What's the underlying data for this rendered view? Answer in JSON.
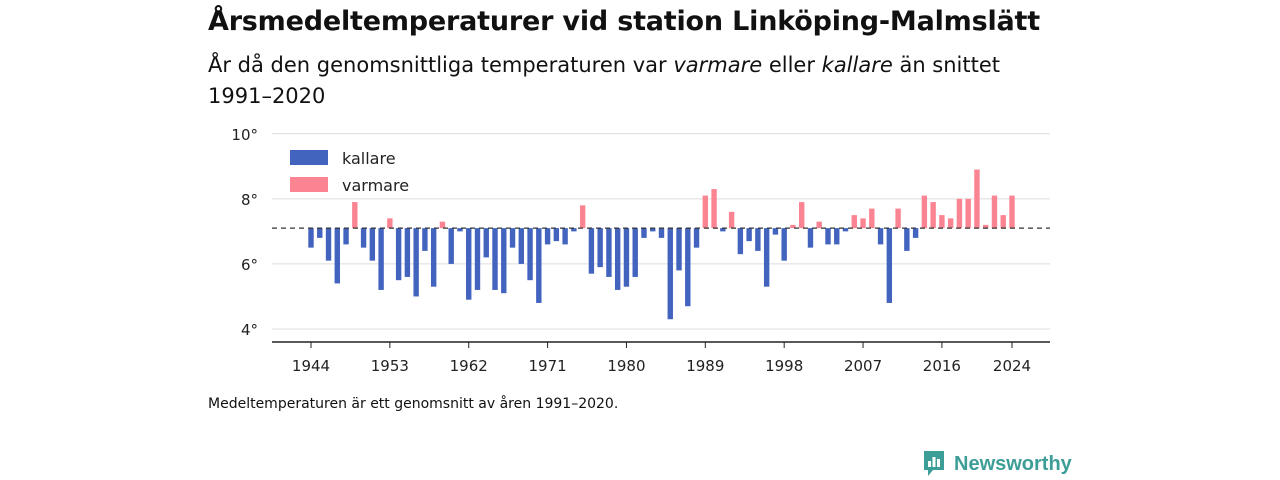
{
  "title": "Årsmedeltemperaturer vid station Linköping-Malmslätt",
  "subtitle": {
    "part1": "År då den genomsnittliga temperaturen var ",
    "em1": "varmare",
    "part2": " eller ",
    "em2": "kallare",
    "part3": " än snittet 1991–2020"
  },
  "footnote": "Medeltemperaturen är ett genomsnitt av åren 1991–2020.",
  "brand": {
    "name": "Newsworthy",
    "icon": "newsworthy-logo-icon",
    "color": "#3d9e97"
  },
  "chart_data": {
    "type": "bar",
    "baseline": 7.1,
    "ylim": [
      3.6,
      10.3
    ],
    "yticks": [
      4,
      6,
      8,
      10
    ],
    "ytick_suffix": "°",
    "xticks": [
      1944,
      1953,
      1962,
      1971,
      1980,
      1989,
      1998,
      2007,
      2016,
      2024
    ],
    "grid": true,
    "legend_position": "top-left",
    "series": [
      {
        "name": "kallare",
        "color": "#4264bf"
      },
      {
        "name": "varmare",
        "color": "#fb8492"
      }
    ],
    "x": [
      1944,
      1945,
      1946,
      1947,
      1948,
      1949,
      1950,
      1951,
      1952,
      1953,
      1954,
      1955,
      1956,
      1957,
      1958,
      1959,
      1960,
      1961,
      1962,
      1963,
      1964,
      1965,
      1966,
      1967,
      1968,
      1969,
      1970,
      1971,
      1972,
      1973,
      1974,
      1975,
      1976,
      1977,
      1978,
      1979,
      1980,
      1981,
      1982,
      1983,
      1984,
      1985,
      1986,
      1987,
      1988,
      1989,
      1990,
      1991,
      1992,
      1993,
      1994,
      1995,
      1996,
      1997,
      1998,
      1999,
      2000,
      2001,
      2002,
      2003,
      2004,
      2005,
      2006,
      2007,
      2008,
      2009,
      2010,
      2011,
      2012,
      2013,
      2014,
      2015,
      2016,
      2017,
      2018,
      2019,
      2020,
      2021,
      2022,
      2023,
      2024
    ],
    "values": [
      6.5,
      6.8,
      6.1,
      5.4,
      6.6,
      7.9,
      6.5,
      6.1,
      5.2,
      7.4,
      5.5,
      5.6,
      5.0,
      6.4,
      5.3,
      7.3,
      6.0,
      7.0,
      4.9,
      5.2,
      6.2,
      5.2,
      5.1,
      6.5,
      6.0,
      5.5,
      4.8,
      6.6,
      6.7,
      6.6,
      7.0,
      7.8,
      5.7,
      5.9,
      5.6,
      5.2,
      5.3,
      5.6,
      6.8,
      7.0,
      6.8,
      4.3,
      5.8,
      4.7,
      6.5,
      8.1,
      8.3,
      7.0,
      7.6,
      6.3,
      6.7,
      6.4,
      5.3,
      6.9,
      6.1,
      7.2,
      7.9,
      6.5,
      7.3,
      6.6,
      6.6,
      7.0,
      7.5,
      7.4,
      7.7,
      6.6,
      4.8,
      7.7,
      6.4,
      6.8,
      8.1,
      7.9,
      7.5,
      7.4,
      8.0,
      8.0,
      8.9,
      7.2,
      8.1,
      7.5,
      8.1
    ]
  }
}
